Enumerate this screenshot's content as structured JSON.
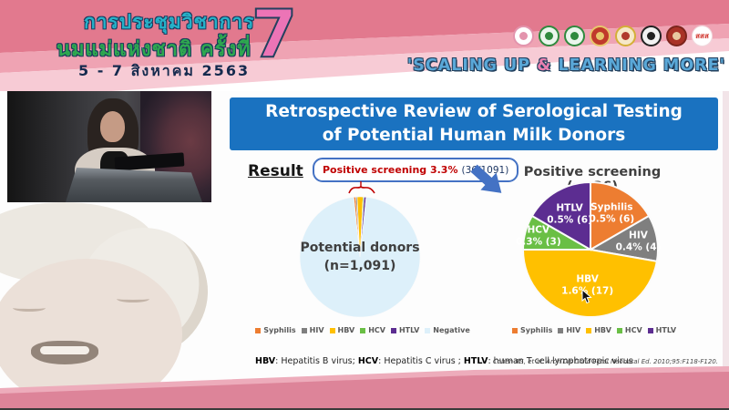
{
  "header": {
    "title_line1": "การประชุมวิชาการ",
    "title_line2": "นมแม่แห่งชาติ ครั้งที่",
    "date_line": "5 - 7 สิงหาคม 2563",
    "edition_number": "7",
    "slogan_open": "'SCALING UP ",
    "slogan_amp": "&",
    "slogan_close": " LEARNING MORE'",
    "logo_text": "สสส"
  },
  "slide": {
    "title": "Retrospective Review of Serological Testing of Potential Human Milk Donors",
    "result_label": "Result",
    "footnote": {
      "abbr1": "HBV",
      "def1": ": Hepatitis B virus; ",
      "abbr2": "HCV",
      "def2": ": Hepatitis C virus ; ",
      "abbr3": "HTLV",
      "def3": ": human T cell lymphotropic virus"
    },
    "citation": "Cohen RS, et al. Arch Dis Child Fetal Neonatal Ed. 2010;95:F118-F120."
  },
  "chart_data": [
    {
      "type": "pie",
      "title": "Potential donors (n=1,091)",
      "center_label": {
        "line1": "Potential donors",
        "line2": "(n=1,091)"
      },
      "annotation": {
        "highlight": "Positive screening 3.3%",
        "detail": "(36/1091)"
      },
      "total": 1091,
      "start_angle": -5.94,
      "legend_position": "bottom",
      "slices": [
        {
          "name": "Syphilis",
          "value": 6,
          "color": "#ed7d31"
        },
        {
          "name": "HIV",
          "value": 4,
          "color": "#7f7f7f"
        },
        {
          "name": "HBV",
          "value": 17,
          "color": "#ffc000"
        },
        {
          "name": "HCV",
          "value": 3,
          "color": "#6abf45"
        },
        {
          "name": "HTLV",
          "value": 6,
          "color": "#5c2d91"
        },
        {
          "name": "Negative",
          "value": 1055,
          "color": "#ddf0fa"
        }
      ]
    },
    {
      "type": "pie",
      "title": "Positive screening (n=36)",
      "total": 36,
      "start_angle": 0,
      "legend_position": "bottom",
      "slices": [
        {
          "name": "Syphilis",
          "value": 6,
          "label": "0.5% (6)",
          "color": "#ed7d31"
        },
        {
          "name": "HIV",
          "value": 4,
          "label": "0.4% (4)",
          "color": "#7f7f7f"
        },
        {
          "name": "HBV",
          "value": 17,
          "label": "1.6% (17)",
          "color": "#ffc000"
        },
        {
          "name": "HCV",
          "value": 3,
          "label": "0.3% (3)",
          "color": "#6abf45"
        },
        {
          "name": "HTLV",
          "value": 6,
          "label": "0.5% (6)",
          "color": "#5c2d91"
        }
      ]
    }
  ]
}
